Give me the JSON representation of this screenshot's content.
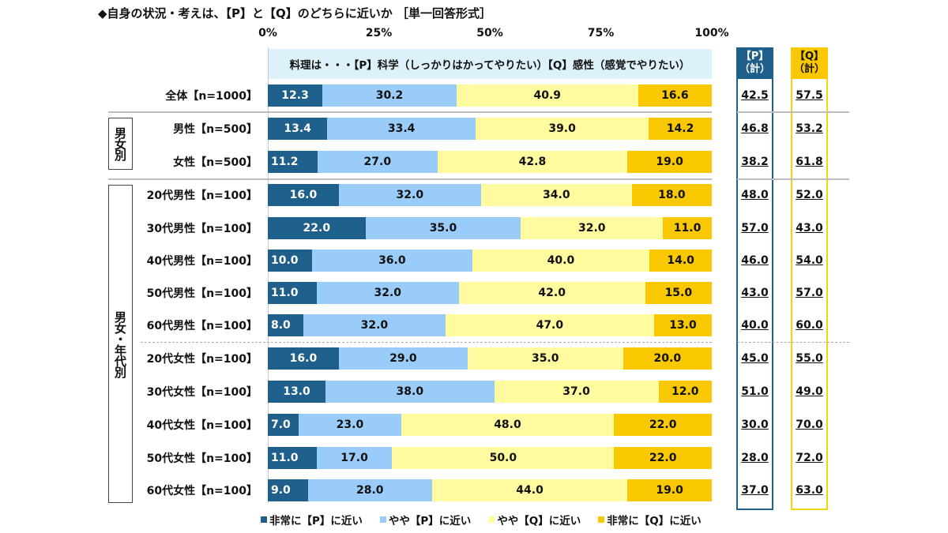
{
  "title": "◆自身の状況・考えは、【P】と【Q】のどちらに近いか ［単一回答形式］",
  "chart_data": {
    "type": "bar",
    "orientation": "horizontal-stacked-100",
    "title": "◆自身の状況・考えは、【P】と【Q】のどちらに近いか ［単一回答形式］",
    "subtitle": "料理は・・・【P】科学（しっかりはかってやりたい）【Q】感性（感覚でやりたい）",
    "xlim": [
      0,
      100
    ],
    "xticks": [
      "0%",
      "25%",
      "50%",
      "75%",
      "100%"
    ],
    "xtick_values": [
      0,
      25,
      50,
      75,
      100
    ],
    "legend_position": "bottom",
    "series": [
      {
        "name": "非常に【P】に近い",
        "color": "#1f5f8b"
      },
      {
        "name": "やや【P】に近い",
        "color": "#99ccf8"
      },
      {
        "name": "やや【Q】に近い",
        "color": "#fffb9e"
      },
      {
        "name": "非常に【Q】に近い",
        "color": "#fac800"
      }
    ],
    "categories": [
      "全体【n=1000】",
      "男性【n=500】",
      "女性【n=500】",
      "20代男性【n=100】",
      "30代男性【n=100】",
      "40代男性【n=100】",
      "50代男性【n=100】",
      "60代男性【n=100】",
      "20代女性【n=100】",
      "30代女性【n=100】",
      "40代女性【n=100】",
      "50代女性【n=100】",
      "60代女性【n=100】"
    ],
    "values": [
      [
        12.3,
        30.2,
        40.9,
        16.6
      ],
      [
        13.4,
        33.4,
        39.0,
        14.2
      ],
      [
        11.2,
        27.0,
        42.8,
        19.0
      ],
      [
        16.0,
        32.0,
        34.0,
        18.0
      ],
      [
        22.0,
        35.0,
        32.0,
        11.0
      ],
      [
        10.0,
        36.0,
        40.0,
        14.0
      ],
      [
        11.0,
        32.0,
        42.0,
        15.0
      ],
      [
        8.0,
        32.0,
        47.0,
        13.0
      ],
      [
        16.0,
        29.0,
        35.0,
        20.0
      ],
      [
        13.0,
        38.0,
        37.0,
        12.0
      ],
      [
        7.0,
        23.0,
        48.0,
        22.0
      ],
      [
        11.0,
        17.0,
        50.0,
        22.0
      ],
      [
        9.0,
        28.0,
        44.0,
        19.0
      ]
    ],
    "totals_headers": [
      "【P】（計）",
      "【Q】（計）"
    ],
    "totals_p": [
      "42.5",
      "46.8",
      "38.2",
      "48.0",
      "57.0",
      "46.0",
      "43.0",
      "40.0",
      "45.0",
      "51.0",
      "30.0",
      "28.0",
      "37.0"
    ],
    "totals_q": [
      "57.5",
      "53.2",
      "61.8",
      "52.0",
      "43.0",
      "54.0",
      "57.0",
      "60.0",
      "55.0",
      "49.0",
      "70.0",
      "72.0",
      "63.0"
    ],
    "groups": [
      {
        "label": "男女別",
        "rows": [
          1,
          2
        ]
      },
      {
        "label": "男女・年代別",
        "rows": [
          3,
          4,
          5,
          6,
          7,
          8,
          9,
          10,
          11,
          12
        ]
      }
    ]
  },
  "totals_head": {
    "p_line1": "【P】",
    "p_line2": "（計）",
    "q_line1": "【Q】",
    "q_line2": "（計）"
  }
}
